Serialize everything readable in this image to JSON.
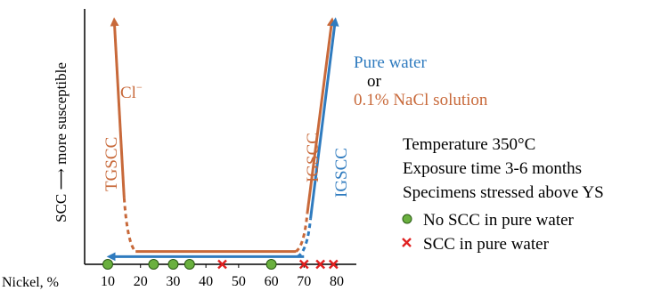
{
  "chart_data": {
    "type": "line",
    "xlabel": "Nickel, %",
    "ylabel": "SCC ⟶ more susceptible",
    "x_ticks": [
      10,
      20,
      30,
      40,
      50,
      60,
      70,
      80
    ],
    "xlim": [
      5,
      87
    ],
    "series": [
      {
        "name": "Cl⁻",
        "color": "#c8693a",
        "curve_label": "TGSCC",
        "points": [
          [
            12,
            95
          ],
          [
            16,
            6
          ],
          [
            68,
            6
          ]
        ],
        "dashed_from": [
          [
            16,
            6
          ],
          [
            18,
            0.5
          ]
        ]
      },
      {
        "name": "Pure water or 0.1% NaCl solution",
        "color": "#c8693a",
        "curve_label": "IGSCC",
        "points": [
          [
            17,
            6
          ],
          [
            68,
            6
          ],
          [
            78.5,
            95
          ]
        ]
      },
      {
        "name": "Pure water",
        "color": "#2f7bbf",
        "curve_label": "IGSCC",
        "points": [
          [
            10,
            3
          ],
          [
            70,
            3
          ],
          [
            79.5,
            95
          ]
        ]
      }
    ],
    "markers": {
      "no_scc": {
        "label": "No SCC in pure water",
        "color": "#6ab03f",
        "x": [
          10,
          24,
          30,
          35,
          60
        ]
      },
      "scc": {
        "label": "SCC in pure water",
        "color": "#e02020",
        "x": [
          45,
          70,
          75,
          79
        ]
      }
    },
    "annotations": {
      "cl_label": "Cl",
      "cl_sup": "−",
      "pure_water": "Pure water",
      "or": "or",
      "nacl": "0.1% NaCl solution",
      "tgscc": "TGSCC",
      "igscc_orange": "IGSCC",
      "igscc_blue": "IGSCC",
      "conditions": [
        "Temperature 350°C",
        "Exposure time 3-6 months",
        "Specimens stressed above YS"
      ]
    },
    "colors": {
      "orange": "#c8693a",
      "blue": "#2f7bbf",
      "axis": "#000000"
    }
  }
}
